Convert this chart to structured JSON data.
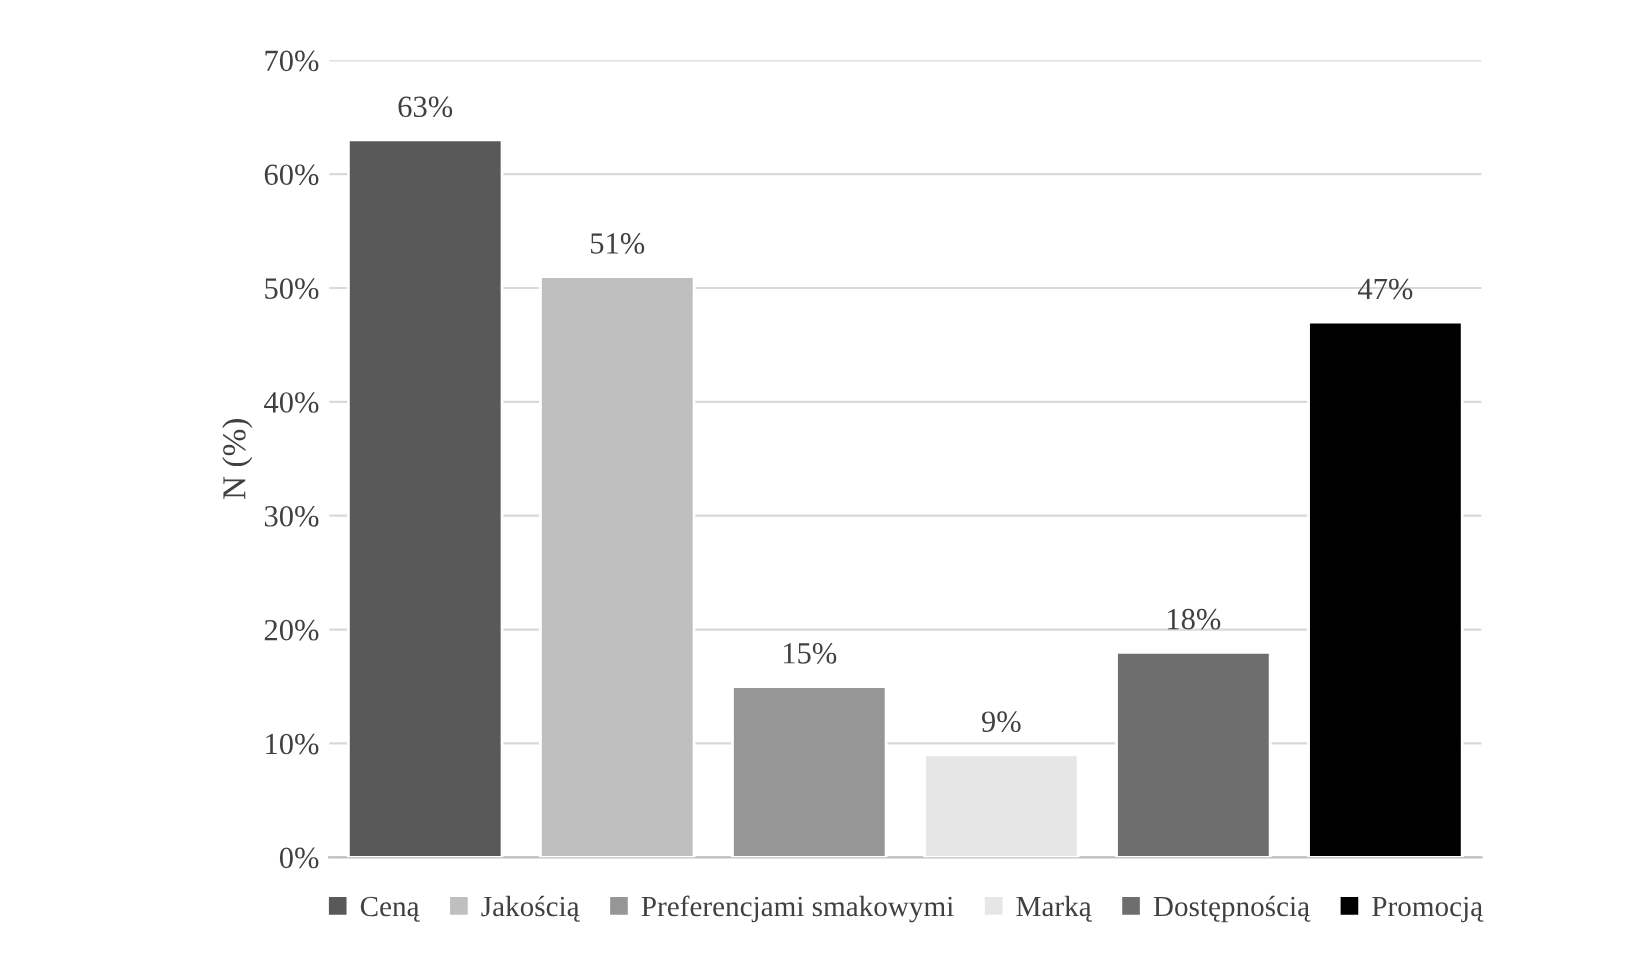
{
  "chart_data": {
    "type": "bar",
    "ylabel": "N (%)",
    "categories": [
      null,
      null,
      null,
      null,
      null,
      null
    ],
    "series": [
      {
        "name": "Ceną",
        "color": "#595959",
        "values": [
          63,
          null,
          null,
          null,
          null,
          null
        ],
        "value_labels": [
          "63%",
          null,
          null,
          null,
          null,
          null
        ]
      },
      {
        "name": "Jakością",
        "color": "#bfbfbf",
        "values": [
          null,
          51,
          null,
          null,
          null,
          null
        ],
        "value_labels": [
          null,
          "51%",
          null,
          null,
          null,
          null
        ]
      },
      {
        "name": "Preferencjami smakowymi",
        "color": "#969696",
        "values": [
          null,
          null,
          15,
          null,
          null,
          null
        ],
        "value_labels": [
          null,
          null,
          "15%",
          null,
          null,
          null
        ]
      },
      {
        "name": "Marką",
        "color": "#e6e6e6",
        "values": [
          null,
          null,
          null,
          9,
          null,
          null
        ],
        "value_labels": [
          null,
          null,
          null,
          "9%",
          null,
          null
        ]
      },
      {
        "name": "Dostępnością",
        "color": "#6e6e6e",
        "values": [
          null,
          null,
          null,
          null,
          18,
          null
        ],
        "value_labels": [
          null,
          null,
          null,
          null,
          "18%",
          null
        ]
      },
      {
        "name": "Promocją",
        "color": "#000000",
        "values": [
          null,
          null,
          null,
          null,
          null,
          47
        ],
        "value_labels": [
          null,
          null,
          null,
          null,
          null,
          "47%"
        ]
      }
    ],
    "ylim": [
      0,
      70
    ],
    "yticks": [
      {
        "value": 0,
        "label": "0%"
      },
      {
        "value": 10,
        "label": "10%"
      },
      {
        "value": 20,
        "label": "20%"
      },
      {
        "value": 30,
        "label": "30%"
      },
      {
        "value": 40,
        "label": "40%"
      },
      {
        "value": 50,
        "label": "50%"
      },
      {
        "value": 60,
        "label": "60%"
      },
      {
        "value": 70,
        "label": "70%"
      }
    ],
    "grid": "y",
    "legend": "bottom",
    "tick_labels": "y"
  }
}
